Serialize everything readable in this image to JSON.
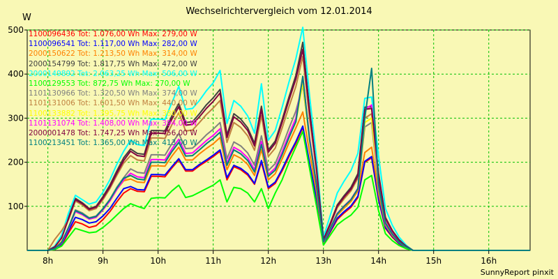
{
  "chart_data": {
    "type": "line",
    "title": "Wechselrichtervergleich vom 12.01.2014",
    "ylabel": "W",
    "footer": "SunnyReport pinxit",
    "grid": true,
    "legend_position": "top-left",
    "xlim": [
      7.625,
      16.75
    ],
    "ylim": [
      0,
      500
    ],
    "xticks": [
      8,
      9,
      10,
      11,
      12,
      13,
      14,
      15,
      16
    ],
    "xtick_labels": [
      "8h",
      "9h",
      "10h",
      "11h",
      "12h",
      "13h",
      "14h",
      "15h",
      "16h"
    ],
    "yticks": [
      100,
      200,
      300,
      400,
      500
    ],
    "ytick_labels": [
      "100",
      "200",
      "300",
      "400",
      "500"
    ],
    "x": [
      7.625,
      7.75,
      7.875,
      8.0,
      8.125,
      8.25,
      8.375,
      8.5,
      8.625,
      8.75,
      8.875,
      9.0,
      9.125,
      9.25,
      9.375,
      9.5,
      9.625,
      9.75,
      9.875,
      10.0,
      10.125,
      10.25,
      10.375,
      10.5,
      10.625,
      10.75,
      10.875,
      11.0,
      11.125,
      11.25,
      11.375,
      11.5,
      11.625,
      11.75,
      11.875,
      12.0,
      12.125,
      12.25,
      12.375,
      12.5,
      12.625,
      12.75,
      12.875,
      13.0,
      13.125,
      13.25,
      13.375,
      13.5,
      13.625,
      13.75,
      13.875,
      14.0,
      14.125,
      14.25,
      14.375,
      14.5,
      14.625,
      14.75,
      14.875,
      15.0,
      15.125,
      15.25,
      15.375,
      15.5,
      15.625,
      15.75,
      15.875,
      16.0,
      16.125,
      16.25,
      16.375,
      16.5,
      16.625,
      16.75
    ],
    "profile": [
      0,
      0,
      0,
      0.02,
      0.08,
      0.14,
      0.2,
      0.245,
      0.235,
      0.21,
      0.22,
      0.255,
      0.3,
      0.36,
      0.42,
      0.49,
      0.47,
      0.45,
      0.56,
      0.56,
      0.56,
      0.63,
      0.72,
      0.58,
      0.6,
      0.63,
      0.68,
      0.72,
      0.795,
      0.53,
      0.64,
      0.62,
      0.57,
      0.5,
      0.73,
      0.45,
      0.52,
      0.62,
      0.74,
      0.84,
      0.95,
      0.66,
      0.39,
      0.0,
      0.0,
      0.0,
      0.0,
      0.0,
      0.0,
      0.0,
      0.0,
      0.0,
      0.0,
      0.0,
      0.0,
      0.0,
      0.0,
      0.0,
      0.0,
      0.0,
      0.0,
      0.0,
      0.0,
      0.0,
      0.0,
      0.0,
      0.0,
      0.0,
      0.0,
      0.0,
      0.0,
      0.0,
      0.0,
      0.0
    ],
    "series": [
      {
        "name": "1100096436 Tot: 1.076,00 Wh Max: 279,00 W",
        "color": "#ff0000",
        "values": [
          0,
          0,
          0,
          0,
          2,
          12,
          40,
          65,
          60,
          52,
          56,
          70,
          88,
          110,
          130,
          140,
          134,
          133,
          168,
          168,
          167,
          187,
          205,
          180,
          180,
          192,
          202,
          213,
          225,
          160,
          190,
          183,
          171,
          150,
          200,
          140,
          152,
          180,
          213,
          243,
          279,
          195,
          115,
          15,
          42,
          70,
          85,
          98,
          120,
          200,
          210,
          115,
          50,
          30,
          15,
          5,
          0,
          0,
          0,
          0,
          0,
          0,
          0,
          0,
          0,
          0,
          0,
          0,
          0,
          0,
          0,
          0,
          0,
          0
        ]
      },
      {
        "name": "1100096541 Tot: 1.117,00 Wh Max: 282,00 W",
        "color": "#0000ff",
        "values": [
          0,
          0,
          0,
          0,
          3,
          15,
          45,
          75,
          70,
          62,
          65,
          78,
          95,
          118,
          140,
          145,
          138,
          137,
          172,
          172,
          171,
          190,
          208,
          183,
          183,
          195,
          205,
          216,
          228,
          165,
          193,
          186,
          174,
          152,
          204,
          143,
          155,
          184,
          217,
          247,
          282,
          198,
          118,
          16,
          44,
          73,
          88,
          101,
          123,
          202,
          213,
          117,
          52,
          32,
          16,
          6,
          0,
          0,
          0,
          0,
          0,
          0,
          0,
          0,
          0,
          0,
          0,
          0,
          0,
          0,
          0,
          0,
          0,
          0
        ]
      },
      {
        "name": "2000150622 Tot: 1.213,50 Wh Max: 314,00 W",
        "color": "#ff8000",
        "values": [
          0,
          0,
          0,
          0,
          5,
          20,
          50,
          90,
          85,
          72,
          75,
          92,
          112,
          138,
          158,
          162,
          155,
          154,
          192,
          192,
          191,
          214,
          234,
          205,
          205,
          219,
          231,
          242,
          256,
          183,
          217,
          209,
          195,
          170,
          229,
          160,
          174,
          207,
          244,
          278,
          314,
          222,
          132,
          18,
          48,
          80,
          96,
          111,
          135,
          222,
          234,
          129,
          57,
          34,
          18,
          7,
          0,
          0,
          0,
          0,
          0,
          0,
          0,
          0,
          0,
          0,
          0,
          0,
          0,
          0,
          0,
          0,
          0,
          0
        ]
      },
      {
        "name": "2000154799 Tot: 1.817,75 Wh Max: 472,00 W",
        "color": "#404040",
        "values": [
          0,
          0,
          0,
          0,
          8,
          30,
          75,
          118,
          108,
          95,
          100,
          122,
          148,
          180,
          210,
          230,
          220,
          218,
          272,
          272,
          271,
          305,
          333,
          290,
          292,
          310,
          330,
          346,
          365,
          262,
          310,
          298,
          278,
          243,
          327,
          228,
          248,
          296,
          348,
          397,
          472,
          318,
          190,
          25,
          62,
          103,
          124,
          143,
          174,
          325,
          326,
          175,
          75,
          45,
          24,
          10,
          0,
          0,
          0,
          0,
          0,
          0,
          0,
          0,
          0,
          0,
          0,
          0,
          0,
          0,
          0,
          0,
          0,
          0
        ]
      },
      {
        "name": "2000149892 Tot: 2.063,25 Wh Max: 506,00 W",
        "color": "#00ffff",
        "values": [
          0,
          0,
          0,
          0,
          10,
          35,
          85,
          125,
          115,
          105,
          110,
          132,
          160,
          195,
          225,
          250,
          240,
          238,
          298,
          298,
          297,
          335,
          372,
          320,
          322,
          340,
          362,
          380,
          408,
          288,
          340,
          327,
          305,
          266,
          378,
          250,
          272,
          324,
          382,
          435,
          506,
          350,
          210,
          30,
          80,
          130,
          157,
          181,
          220,
          345,
          348,
          215,
          95,
          57,
          30,
          12,
          0,
          0,
          0,
          0,
          0,
          0,
          0,
          0,
          0,
          0,
          0,
          0,
          0,
          0,
          0,
          0,
          0,
          0
        ]
      },
      {
        "name": "1100129553 Tot: 872,75 Wh Max: 270,00 W",
        "color": "#00ff00",
        "values": [
          0,
          0,
          0,
          0,
          2,
          10,
          30,
          50,
          45,
          40,
          42,
          52,
          65,
          80,
          95,
          106,
          100,
          95,
          118,
          120,
          119,
          135,
          148,
          120,
          124,
          132,
          140,
          148,
          160,
          110,
          143,
          140,
          130,
          110,
          140,
          95,
          130,
          160,
          200,
          235,
          270,
          185,
          100,
          12,
          35,
          58,
          70,
          80,
          98,
          160,
          170,
          90,
          38,
          22,
          11,
          4,
          0,
          0,
          0,
          0,
          0,
          0,
          0,
          0,
          0,
          0,
          0,
          0,
          0,
          0,
          0,
          0,
          0,
          0
        ]
      },
      {
        "name": "1101130966 Tot: 1.320,50 Wh Max: 374,00 W",
        "color": "#808080",
        "values": [
          0,
          0,
          0,
          0,
          4,
          18,
          52,
          92,
          85,
          74,
          78,
          95,
          116,
          143,
          165,
          185,
          177,
          175,
          217,
          217,
          216,
          242,
          265,
          231,
          232,
          246,
          262,
          275,
          290,
          208,
          246,
          237,
          221,
          193,
          260,
          181,
          197,
          235,
          277,
          316,
          374,
          253,
          151,
          20,
          50,
          83,
          100,
          115,
          140,
          280,
          290,
          140,
          60,
          36,
          19,
          8,
          0,
          0,
          0,
          0,
          0,
          0,
          0,
          0,
          0,
          0,
          0,
          0,
          0,
          0,
          0,
          0,
          0,
          0
        ]
      },
      {
        "name": "1101131006 Tot: 1.601,50 Wh Max: 440,00 W",
        "color": "#c08040",
        "values": [
          0,
          0,
          0,
          0,
          25,
          45,
          70,
          112,
          103,
          90,
          95,
          115,
          140,
          170,
          198,
          215,
          205,
          203,
          255,
          255,
          254,
          285,
          312,
          271,
          273,
          290,
          308,
          323,
          340,
          245,
          290,
          279,
          260,
          227,
          306,
          213,
          232,
          277,
          326,
          372,
          440,
          298,
          178,
          24,
          58,
          97,
          117,
          135,
          164,
          300,
          310,
          165,
          70,
          42,
          22,
          9,
          0,
          0,
          0,
          0,
          0,
          0,
          0,
          0,
          0,
          0,
          0,
          0,
          0,
          0,
          0,
          0,
          0,
          0
        ]
      },
      {
        "name": "1100133882 Tot: 1.395,75 Wh Max: 380,00 W",
        "color": "#ffff00",
        "values": [
          0,
          0,
          0,
          0,
          4,
          17,
          50,
          88,
          81,
          71,
          75,
          92,
          112,
          138,
          160,
          170,
          162,
          160,
          200,
          200,
          199,
          224,
          245,
          214,
          215,
          228,
          242,
          254,
          268,
          193,
          228,
          219,
          204,
          178,
          240,
          168,
          182,
          217,
          256,
          292,
          380,
          248,
          148,
          20,
          50,
          83,
          100,
          115,
          140,
          290,
          300,
          150,
          62,
          37,
          19,
          8,
          0,
          0,
          0,
          0,
          0,
          0,
          0,
          0,
          0,
          0,
          0,
          0,
          0,
          0,
          0,
          0,
          0,
          0
        ]
      },
      {
        "name": "1101131074 Tot: 1.408,00 Wh Max: 394,00 W",
        "color": "#ff00ff",
        "values": [
          0,
          0,
          0,
          0,
          4,
          17,
          50,
          88,
          81,
          71,
          75,
          92,
          112,
          138,
          160,
          175,
          167,
          165,
          206,
          206,
          205,
          230,
          252,
          220,
          221,
          235,
          249,
          261,
          276,
          198,
          234,
          225,
          210,
          183,
          247,
          172,
          187,
          223,
          263,
          300,
          394,
          255,
          150,
          20,
          50,
          84,
          101,
          116,
          141,
          320,
          330,
          155,
          64,
          38,
          20,
          8,
          0,
          0,
          0,
          0,
          0,
          0,
          0,
          0,
          0,
          0,
          0,
          0,
          0,
          0,
          0,
          0,
          0,
          0
        ]
      },
      {
        "name": "2000001478 Tot: 1.747,25 Wh Max: 456,00 W",
        "color": "#800040",
        "values": [
          0,
          0,
          0,
          0,
          8,
          28,
          72,
          115,
          106,
          93,
          98,
          119,
          144,
          175,
          204,
          225,
          215,
          213,
          266,
          266,
          265,
          298,
          326,
          284,
          286,
          303,
          322,
          338,
          357,
          256,
          303,
          291,
          272,
          237,
          320,
          223,
          243,
          290,
          341,
          389,
          456,
          311,
          186,
          25,
          60,
          100,
          121,
          139,
          169,
          320,
          322,
          172,
          73,
          44,
          23,
          10,
          0,
          0,
          0,
          0,
          0,
          0,
          0,
          0,
          0,
          0,
          0,
          0,
          0,
          0,
          0,
          0,
          0,
          0
        ]
      },
      {
        "name": "1100213451 Tot: 1.365,00 Wh Max: 413,00 W",
        "color": "#008080",
        "values": [
          0,
          0,
          0,
          0,
          4,
          18,
          52,
          90,
          83,
          73,
          77,
          94,
          115,
          141,
          164,
          170,
          162,
          160,
          200,
          200,
          199,
          224,
          245,
          214,
          215,
          228,
          242,
          254,
          268,
          193,
          228,
          219,
          204,
          178,
          240,
          168,
          182,
          217,
          256,
          292,
          395,
          250,
          148,
          20,
          50,
          83,
          100,
          115,
          140,
          300,
          413,
          150,
          62,
          37,
          19,
          8,
          0,
          0,
          0,
          0,
          0,
          0,
          0,
          0,
          0,
          0,
          0,
          0,
          0,
          0,
          0,
          0,
          0,
          0
        ]
      }
    ]
  }
}
